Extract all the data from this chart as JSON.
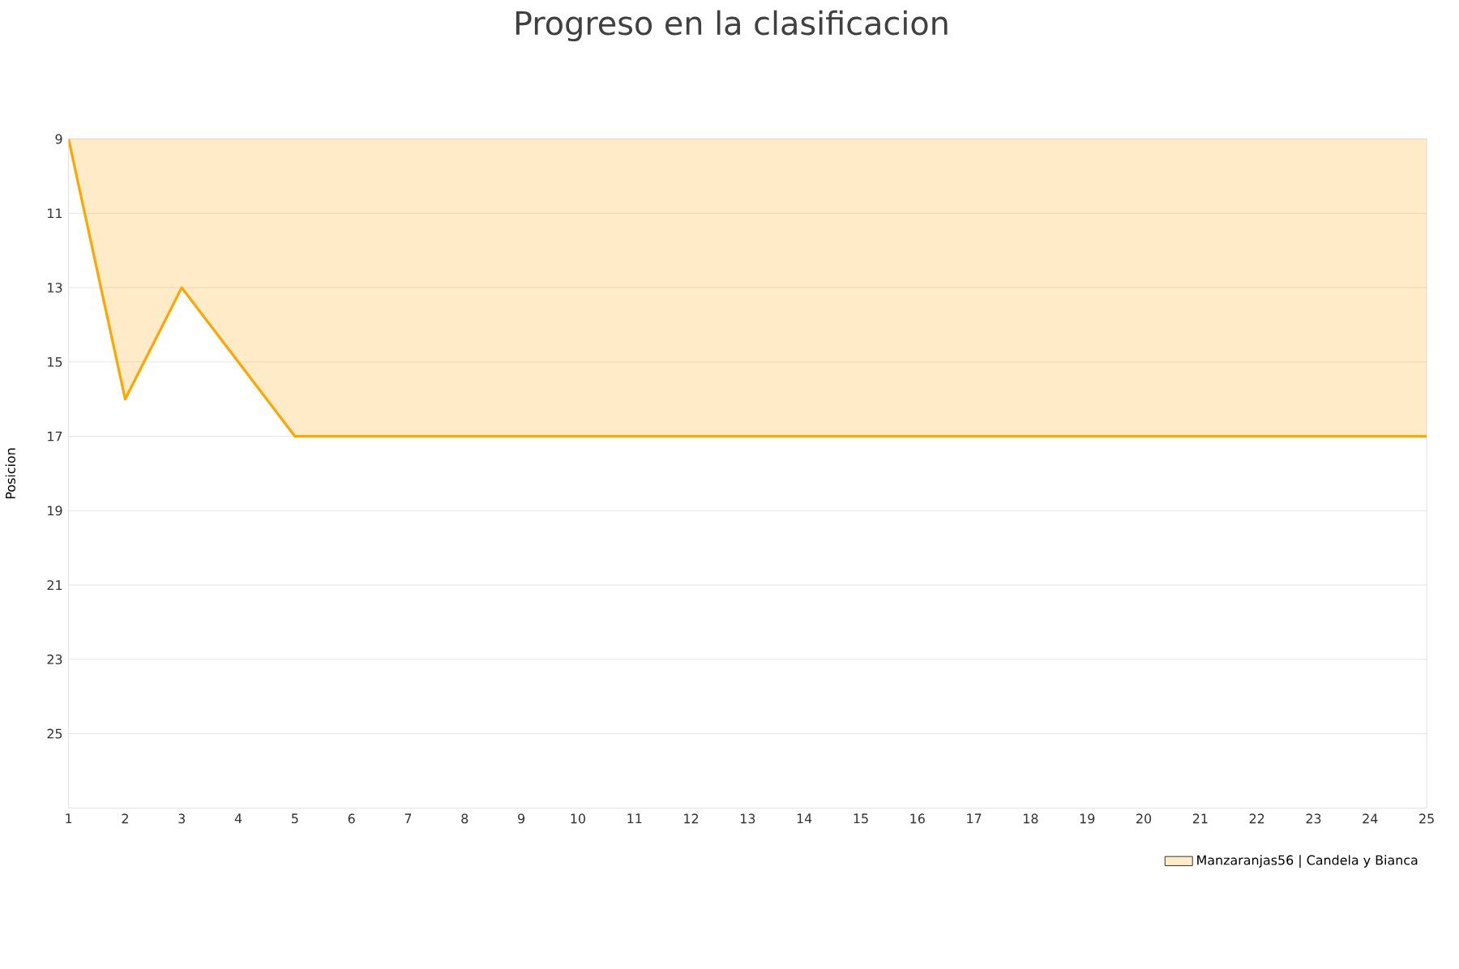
{
  "chart_data": {
    "type": "area",
    "title": "Progreso en la clasificacion",
    "ylabel": "Posicion",
    "x": [
      1,
      2,
      3,
      4,
      5,
      6,
      7,
      8,
      9,
      10,
      11,
      12,
      13,
      14,
      15,
      16,
      17,
      18,
      19,
      20,
      21,
      22,
      23,
      24,
      25
    ],
    "series": [
      {
        "name": "Manzaranjas56 | Candela y Bianca",
        "color": "#ffa500",
        "values": [
          9,
          16,
          13,
          15,
          17,
          17,
          17,
          17,
          17,
          17,
          17,
          17,
          17,
          17,
          17,
          17,
          17,
          17,
          17,
          17,
          17,
          17,
          17,
          17,
          17
        ]
      }
    ],
    "xlim": [
      1,
      25
    ],
    "xticks": [
      1,
      2,
      3,
      4,
      5,
      6,
      7,
      8,
      9,
      10,
      11,
      12,
      13,
      14,
      15,
      16,
      17,
      18,
      19,
      20,
      21,
      22,
      23,
      24,
      25
    ],
    "ylim": [
      27,
      9
    ],
    "yticks": [
      9,
      11,
      13,
      15,
      17,
      19,
      21,
      23,
      25
    ],
    "grid": "y",
    "legend": "bottom right",
    "marker": "none",
    "line_style": "solid"
  }
}
